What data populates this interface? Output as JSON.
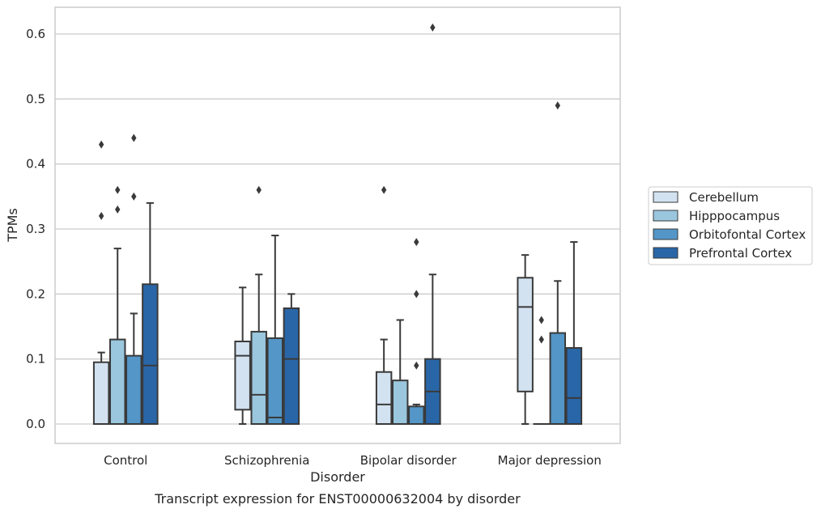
{
  "caption": "Transcript expression for ENST00000632004 by disorder",
  "colors": {
    "Cerebellum": "#d3e2f0",
    "Hipppocampus": "#9ac6de",
    "Orbitofontal Cortex": "#5396c7",
    "Prefrontal Cortex": "#2966a7",
    "edge": "#3a3a3a",
    "grid": "#cccccc"
  },
  "chart_data": {
    "type": "box",
    "xlabel": "Disorder",
    "ylabel": "TPMs",
    "ylim": [
      -0.03,
      0.64
    ],
    "yticks": [
      0.0,
      0.1,
      0.2,
      0.3,
      0.4,
      0.5,
      0.6
    ],
    "ytick_labels": [
      "0.0",
      "0.1",
      "0.2",
      "0.3",
      "0.4",
      "0.5",
      "0.6"
    ],
    "grid": true,
    "legend_placement": "right",
    "categories": [
      "Control",
      "Schizophrenia",
      "Bipolar disorder",
      "Major depression"
    ],
    "series": [
      {
        "name": "Cerebellum",
        "boxes": [
          {
            "whislo": 0.0,
            "q1": 0.0,
            "med": 0.0,
            "q3": 0.095,
            "whishi": 0.11,
            "fliers": [
              0.32,
              0.43
            ]
          },
          {
            "whislo": 0.0,
            "q1": 0.022,
            "med": 0.105,
            "q3": 0.127,
            "whishi": 0.21,
            "fliers": []
          },
          {
            "whislo": 0.0,
            "q1": 0.0,
            "med": 0.03,
            "q3": 0.08,
            "whishi": 0.13,
            "fliers": [
              0.36
            ]
          },
          {
            "whislo": 0.0,
            "q1": 0.05,
            "med": 0.18,
            "q3": 0.225,
            "whishi": 0.26,
            "fliers": []
          }
        ]
      },
      {
        "name": "Hipppocampus",
        "boxes": [
          {
            "whislo": 0.0,
            "q1": 0.0,
            "med": 0.0,
            "q3": 0.13,
            "whishi": 0.27,
            "fliers": [
              0.33,
              0.36
            ]
          },
          {
            "whislo": 0.0,
            "q1": 0.0,
            "med": 0.045,
            "q3": 0.142,
            "whishi": 0.23,
            "fliers": [
              0.36
            ]
          },
          {
            "whislo": 0.0,
            "q1": 0.0,
            "med": 0.0,
            "q3": 0.067,
            "whishi": 0.16,
            "fliers": []
          },
          {
            "whislo": 0.0,
            "q1": 0.0,
            "med": 0.0,
            "q3": 0.0,
            "whishi": 0.0,
            "fliers": [
              0.13,
              0.16
            ]
          }
        ]
      },
      {
        "name": "Orbitofontal Cortex",
        "boxes": [
          {
            "whislo": 0.0,
            "q1": 0.0,
            "med": 0.0,
            "q3": 0.105,
            "whishi": 0.17,
            "fliers": [
              0.35,
              0.44
            ]
          },
          {
            "whislo": 0.0,
            "q1": 0.0,
            "med": 0.01,
            "q3": 0.132,
            "whishi": 0.29,
            "fliers": []
          },
          {
            "whislo": 0.0,
            "q1": 0.0,
            "med": 0.0,
            "q3": 0.027,
            "whishi": 0.03,
            "fliers": [
              0.09,
              0.2,
              0.28
            ]
          },
          {
            "whislo": 0.0,
            "q1": 0.0,
            "med": 0.0,
            "q3": 0.14,
            "whishi": 0.22,
            "fliers": [
              0.49
            ]
          }
        ]
      },
      {
        "name": "Prefrontal Cortex",
        "boxes": [
          {
            "whislo": 0.0,
            "q1": 0.0,
            "med": 0.09,
            "q3": 0.215,
            "whishi": 0.34,
            "fliers": []
          },
          {
            "whislo": 0.0,
            "q1": 0.0,
            "med": 0.1,
            "q3": 0.178,
            "whishi": 0.2,
            "fliers": []
          },
          {
            "whislo": 0.0,
            "q1": 0.0,
            "med": 0.05,
            "q3": 0.1,
            "whishi": 0.23,
            "fliers": [
              0.61
            ]
          },
          {
            "whislo": 0.0,
            "q1": 0.0,
            "med": 0.04,
            "q3": 0.117,
            "whishi": 0.28,
            "fliers": []
          }
        ]
      }
    ]
  }
}
